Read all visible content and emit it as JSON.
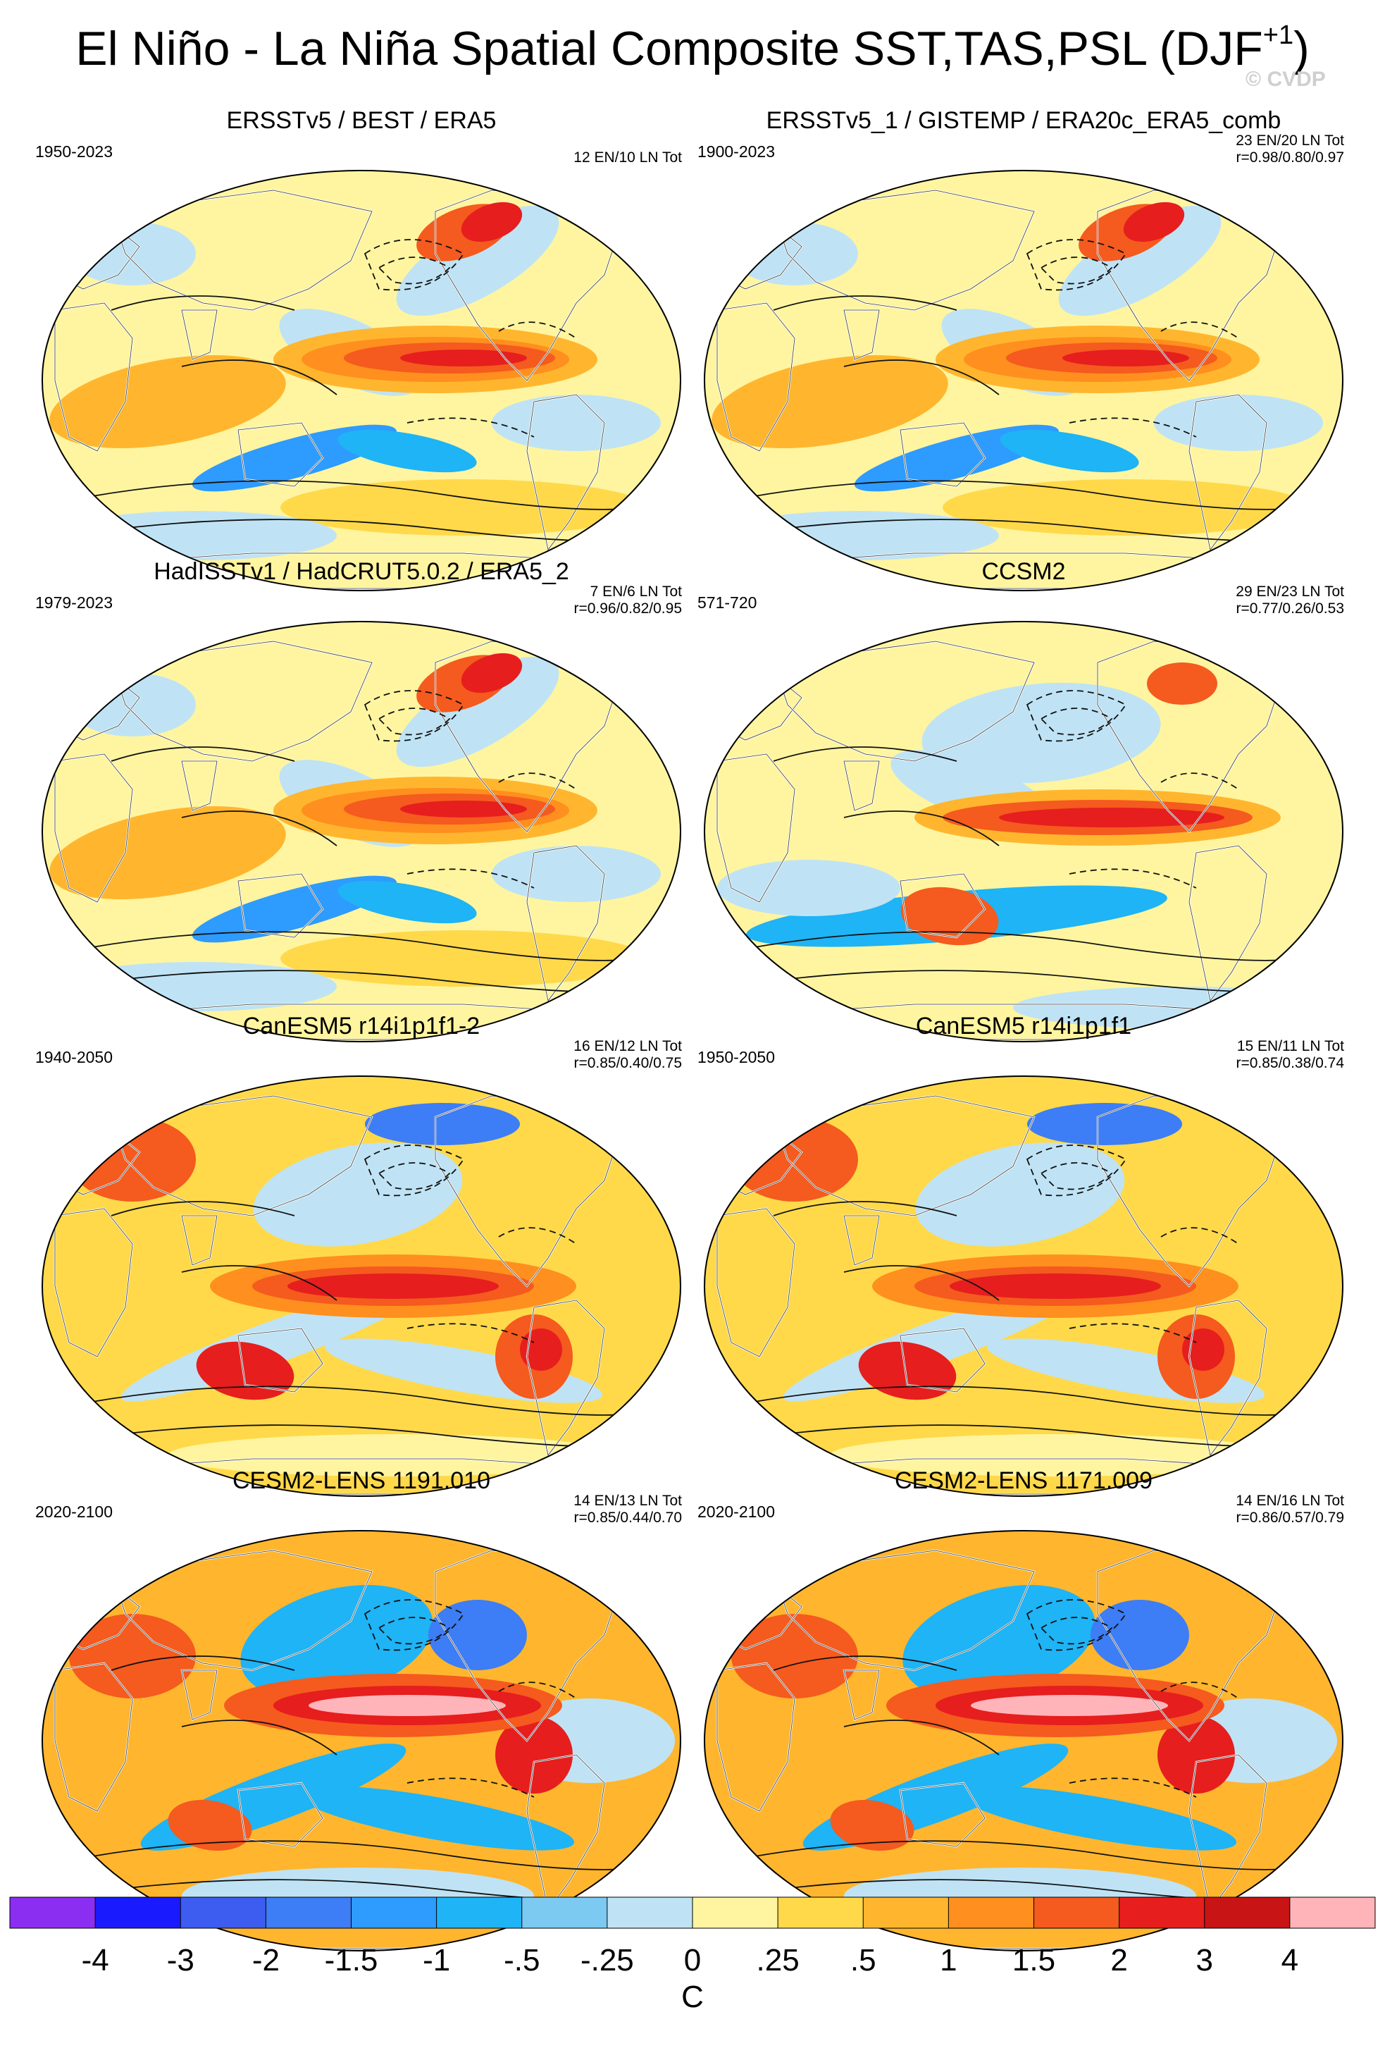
{
  "figure": {
    "title_main": "El Niño - La Niña Spatial Composite SST,TAS,PSL (DJF",
    "title_sup": "+1",
    "title_end": ")",
    "watermark": "© CVDP"
  },
  "chart_data": {
    "type": "map-composite",
    "variables": [
      "SST",
      "TAS",
      "PSL"
    ],
    "season": "DJF+1",
    "units": "C",
    "panels": [
      {
        "title": "ERSSTv5 / BEST / ERA5",
        "years": "1950-2023",
        "stats_line1": "12 EN/10 LN Tot",
        "stats_line2": "",
        "kind": "obs"
      },
      {
        "title": "ERSSTv5_1 / GISTEMP / ERA20c_ERA5_comb",
        "years": "1900-2023",
        "stats_line1": "23 EN/20 LN Tot",
        "stats_line2": "r=0.98/0.80/0.97",
        "kind": "obs"
      },
      {
        "title": "HadISSTv1 / HadCRUT5.0.2 / ERA5_2",
        "years": "1979-2023",
        "stats_line1": "7 EN/6 LN Tot",
        "stats_line2": "r=0.96/0.82/0.95",
        "kind": "obs"
      },
      {
        "title": "CCSM2",
        "years": "571-720",
        "stats_line1": "29 EN/23 LN Tot",
        "stats_line2": "r=0.77/0.26/0.53",
        "kind": "ccsm"
      },
      {
        "title": "CanESM5 r14i1p1f1-2",
        "years": "1940-2050",
        "stats_line1": "16 EN/12 LN Tot",
        "stats_line2": "r=0.85/0.40/0.75",
        "kind": "canesm"
      },
      {
        "title": "CanESM5 r14i1p1f1",
        "years": "1950-2050",
        "stats_line1": "15 EN/11 LN Tot",
        "stats_line2": "r=0.85/0.38/0.74",
        "kind": "canesm"
      },
      {
        "title": "CESM2-LENS 1191.010",
        "years": "2020-2100",
        "stats_line1": "14 EN/13 LN Tot",
        "stats_line2": "r=0.85/0.44/0.70",
        "kind": "cesm"
      },
      {
        "title": "CESM2-LENS 1171.009",
        "years": "2020-2100",
        "stats_line1": "14 EN/16 LN Tot",
        "stats_line2": "r=0.86/0.57/0.79",
        "kind": "cesm"
      }
    ],
    "colorbar": {
      "label": "C",
      "levels": [
        "-4",
        "-3",
        "-2",
        "-1.5",
        "-1",
        "-.5",
        "-.25",
        "0",
        ".25",
        ".5",
        "1",
        "1.5",
        "2",
        "3",
        "4"
      ],
      "colors": [
        "#8c2df2",
        "#1a1aff",
        "#3d5cf0",
        "#3d7df5",
        "#2e9bff",
        "#1eb4f5",
        "#7cc9f2",
        "#bfe3f5",
        "#fff5a0",
        "#ffd94a",
        "#ffb62e",
        "#ff8f1e",
        "#f55a1e",
        "#e61e1e",
        "#c81414",
        "#ffb4b9"
      ]
    }
  }
}
